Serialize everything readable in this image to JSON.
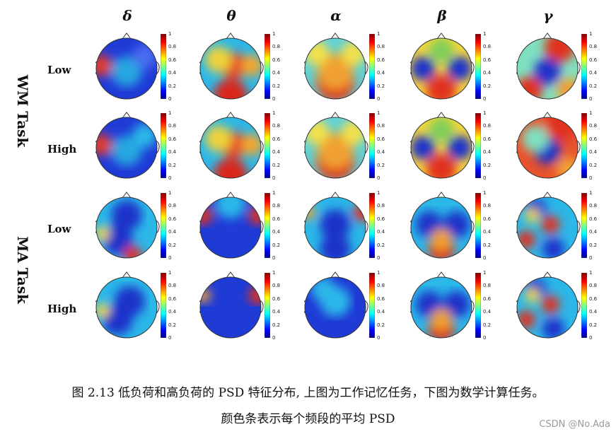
{
  "figure": {
    "bands": [
      "δ",
      "θ",
      "α",
      "β",
      "γ"
    ],
    "tasks": [
      {
        "label": "WM Task",
        "rows": [
          {
            "label": "Low",
            "maps": [
              {
                "base": "#1f3bd6",
                "blobs": [
                  [
                    "#e03a2c",
                    0.08,
                    0.45,
                    0.18
                  ],
                  [
                    "#27a7e0",
                    0.5,
                    0.55,
                    0.25
                  ],
                  [
                    "#4a6cf0",
                    0.8,
                    0.3,
                    0.2
                  ]
                ]
              },
              {
                "base": "#2bb7e8",
                "blobs": [
                  [
                    "#e6422a",
                    0.55,
                    0.45,
                    0.22
                  ],
                  [
                    "#f0d23a",
                    0.3,
                    0.35,
                    0.22
                  ],
                  [
                    "#d9281f",
                    0.5,
                    0.95,
                    0.28
                  ],
                  [
                    "#f3a62e",
                    0.85,
                    0.45,
                    0.18
                  ]
                ]
              },
              {
                "base": "#5fd0d6",
                "blobs": [
                  [
                    "#e0321f",
                    0.5,
                    0.72,
                    0.32
                  ],
                  [
                    "#f0a030",
                    0.5,
                    0.55,
                    0.3
                  ],
                  [
                    "#f4e04a",
                    0.8,
                    0.25,
                    0.2
                  ],
                  [
                    "#f4e04a",
                    0.2,
                    0.25,
                    0.2
                  ]
                ]
              },
              {
                "base": "#f4d53b",
                "blobs": [
                  [
                    "#1c33c9",
                    0.2,
                    0.5,
                    0.2
                  ],
                  [
                    "#1c33c9",
                    0.8,
                    0.5,
                    0.2
                  ],
                  [
                    "#e0321f",
                    0.5,
                    0.85,
                    0.25
                  ],
                  [
                    "#7ecf5a",
                    0.5,
                    0.2,
                    0.2
                  ]
                ]
              },
              {
                "base": "#7fe0c0",
                "blobs": [
                  [
                    "#e0321f",
                    0.7,
                    0.15,
                    0.25
                  ],
                  [
                    "#1c33c9",
                    0.5,
                    0.55,
                    0.22
                  ],
                  [
                    "#e0321f",
                    0.2,
                    0.85,
                    0.22
                  ],
                  [
                    "#f0a030",
                    0.85,
                    0.85,
                    0.2
                  ]
                ]
              }
            ]
          },
          {
            "label": "High",
            "maps": [
              {
                "base": "#1f3bd6",
                "blobs": [
                  [
                    "#e03a2c",
                    0.08,
                    0.45,
                    0.18
                  ],
                  [
                    "#27a7e0",
                    0.5,
                    0.55,
                    0.25
                  ],
                  [
                    "#2bb7e8",
                    0.8,
                    0.3,
                    0.2
                  ]
                ]
              },
              {
                "base": "#2bb7e8",
                "blobs": [
                  [
                    "#e6422a",
                    0.55,
                    0.45,
                    0.22
                  ],
                  [
                    "#f0d23a",
                    0.3,
                    0.35,
                    0.22
                  ],
                  [
                    "#d9281f",
                    0.5,
                    0.95,
                    0.28
                  ],
                  [
                    "#f3a62e",
                    0.85,
                    0.45,
                    0.18
                  ]
                ]
              },
              {
                "base": "#5fd0d6",
                "blobs": [
                  [
                    "#e0321f",
                    0.5,
                    0.72,
                    0.32
                  ],
                  [
                    "#f0a030",
                    0.5,
                    0.55,
                    0.3
                  ],
                  [
                    "#f4e04a",
                    0.8,
                    0.25,
                    0.2
                  ],
                  [
                    "#f4e04a",
                    0.2,
                    0.25,
                    0.2
                  ]
                ]
              },
              {
                "base": "#f4d53b",
                "blobs": [
                  [
                    "#1c33c9",
                    0.2,
                    0.5,
                    0.2
                  ],
                  [
                    "#1c33c9",
                    0.8,
                    0.5,
                    0.2
                  ],
                  [
                    "#e0321f",
                    0.5,
                    0.85,
                    0.25
                  ],
                  [
                    "#7ecf5a",
                    0.5,
                    0.2,
                    0.2
                  ]
                ]
              },
              {
                "base": "#e8532d",
                "blobs": [
                  [
                    "#e0321f",
                    0.7,
                    0.15,
                    0.25
                  ],
                  [
                    "#1c33c9",
                    0.5,
                    0.55,
                    0.22
                  ],
                  [
                    "#7fe0c0",
                    0.3,
                    0.35,
                    0.22
                  ],
                  [
                    "#f0a030",
                    0.85,
                    0.85,
                    0.2
                  ]
                ]
              }
            ]
          }
        ]
      },
      {
        "label": "MA Task",
        "rows": [
          {
            "label": "Low",
            "maps": [
              {
                "base": "#2bb7e8",
                "blobs": [
                  [
                    "#1c33c9",
                    0.5,
                    0.3,
                    0.25
                  ],
                  [
                    "#1c33c9",
                    0.35,
                    0.7,
                    0.25
                  ],
                  [
                    "#e0321f",
                    0.6,
                    0.95,
                    0.15
                  ],
                  [
                    "#f4d53b",
                    0.1,
                    0.6,
                    0.12
                  ]
                ]
              },
              {
                "base": "#1f3bd6",
                "blobs": [
                  [
                    "#e0321f",
                    0.05,
                    0.3,
                    0.15
                  ],
                  [
                    "#e0321f",
                    0.95,
                    0.3,
                    0.15
                  ],
                  [
                    "#2bb7e8",
                    0.5,
                    0.1,
                    0.25
                  ]
                ]
              },
              {
                "base": "#2bb7e8",
                "blobs": [
                  [
                    "#1c33c9",
                    0.5,
                    0.45,
                    0.25
                  ],
                  [
                    "#1c33c9",
                    0.5,
                    0.85,
                    0.25
                  ],
                  [
                    "#e0321f",
                    0.95,
                    0.25,
                    0.15
                  ],
                  [
                    "#f0a030",
                    0.05,
                    0.25,
                    0.12
                  ]
                ]
              },
              {
                "base": "#2bb7e8",
                "blobs": [
                  [
                    "#1c33c9",
                    0.3,
                    0.45,
                    0.22
                  ],
                  [
                    "#1c33c9",
                    0.75,
                    0.45,
                    0.22
                  ],
                  [
                    "#e0321f",
                    0.5,
                    0.85,
                    0.22
                  ],
                  [
                    "#f0a030",
                    0.5,
                    0.7,
                    0.18
                  ]
                ]
              },
              {
                "base": "#2bb7e8",
                "blobs": [
                  [
                    "#1c33c9",
                    0.3,
                    0.2,
                    0.18
                  ],
                  [
                    "#e0321f",
                    0.55,
                    0.45,
                    0.15
                  ],
                  [
                    "#e0321f",
                    0.15,
                    0.7,
                    0.15
                  ],
                  [
                    "#1c33c9",
                    0.6,
                    0.85,
                    0.18
                  ],
                  [
                    "#f4d53b",
                    0.25,
                    0.3,
                    0.12
                  ]
                ]
              }
            ]
          },
          {
            "label": "High",
            "maps": [
              {
                "base": "#2bb7e8",
                "blobs": [
                  [
                    "#1c33c9",
                    0.55,
                    0.4,
                    0.25
                  ],
                  [
                    "#1c33c9",
                    0.35,
                    0.7,
                    0.25
                  ],
                  [
                    "#f4d53b",
                    0.1,
                    0.55,
                    0.12
                  ]
                ]
              },
              {
                "base": "#1f3bd6",
                "blobs": [
                  [
                    "#f0a030",
                    0.05,
                    0.3,
                    0.12
                  ],
                  [
                    "#e0321f",
                    0.95,
                    0.3,
                    0.15
                  ]
                ]
              },
              {
                "base": "#1f3bd6",
                "blobs": [
                  [
                    "#2bb7e8",
                    0.5,
                    0.4,
                    0.25
                  ],
                  [
                    "#2bb7e8",
                    0.3,
                    0.2,
                    0.2
                  ]
                ]
              },
              {
                "base": "#2bb7e8",
                "blobs": [
                  [
                    "#1c33c9",
                    0.3,
                    0.45,
                    0.22
                  ],
                  [
                    "#1c33c9",
                    0.75,
                    0.45,
                    0.22
                  ],
                  [
                    "#e0321f",
                    0.5,
                    0.85,
                    0.22
                  ],
                  [
                    "#f0a030",
                    0.5,
                    0.7,
                    0.18
                  ]
                ]
              },
              {
                "base": "#2bb7e8",
                "blobs": [
                  [
                    "#1c33c9",
                    0.3,
                    0.2,
                    0.18
                  ],
                  [
                    "#e0321f",
                    0.55,
                    0.45,
                    0.15
                  ],
                  [
                    "#e0321f",
                    0.15,
                    0.7,
                    0.15
                  ],
                  [
                    "#1c33c9",
                    0.6,
                    0.85,
                    0.18
                  ],
                  [
                    "#f4d53b",
                    0.25,
                    0.3,
                    0.12
                  ]
                ]
              }
            ]
          }
        ]
      }
    ],
    "colorbar_ticks": [
      "1",
      "0.8",
      "0.6",
      "0.4",
      "0.2",
      "0"
    ]
  },
  "caption": {
    "line1": "图 2.13  低负荷和高负荷的 PSD 特征分布, 上图为工作记忆任务，下图为数学计算任务。",
    "line2": "颜色条表示每个频段的平均 PSD"
  },
  "watermark": "CSDN @No.Ada"
}
